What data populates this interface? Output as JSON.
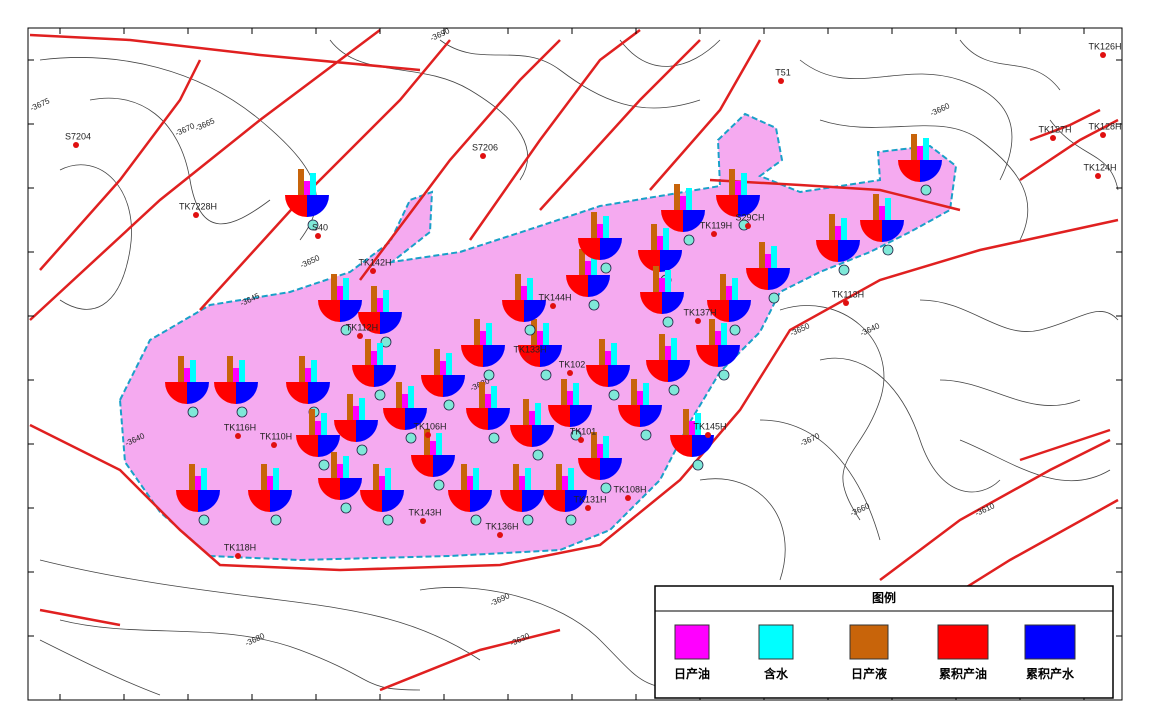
{
  "map": {
    "legend": {
      "title": "图例",
      "items": [
        {
          "label": "日产油",
          "color": "#ff00ff"
        },
        {
          "label": "含水",
          "color": "#00ffff"
        },
        {
          "label": "日产液",
          "color": "#c8640a"
        },
        {
          "label": "累积产油",
          "color": "#ff0000"
        },
        {
          "label": "累积产水",
          "color": "#0000ff"
        }
      ]
    },
    "wells": [
      {
        "label": "S7204"
      },
      {
        "label": "S7206"
      },
      {
        "label": "TK7228H"
      },
      {
        "label": "S40"
      },
      {
        "label": "T51"
      },
      {
        "label": "TK142H"
      },
      {
        "label": "TK112H"
      },
      {
        "label": "TK116H"
      },
      {
        "label": "TK110H"
      },
      {
        "label": "TK118H"
      },
      {
        "label": "TK144H"
      },
      {
        "label": "TK133H"
      },
      {
        "label": "TK102"
      },
      {
        "label": "TK101"
      },
      {
        "label": "TK106H"
      },
      {
        "label": "TK143H"
      },
      {
        "label": "TK136H"
      },
      {
        "label": "TK131H"
      },
      {
        "label": "TK108H"
      },
      {
        "label": "TK145H"
      },
      {
        "label": "TK119H"
      },
      {
        "label": "S29CH"
      },
      {
        "label": "TK113H"
      },
      {
        "label": "TK137H"
      },
      {
        "label": "TK126H"
      },
      {
        "label": "TK127H"
      },
      {
        "label": "TK128H"
      },
      {
        "label": "TK124H"
      }
    ],
    "contour_labels": [
      "-3675",
      "-3670",
      "-3665",
      "-3660",
      "-3690",
      "-3650",
      "-3645",
      "-3640",
      "-3635",
      "-3630",
      "-3680",
      "-3610",
      "-3660",
      "-3650",
      "-3640",
      "-3670",
      "-3690",
      "-3630"
    ]
  }
}
